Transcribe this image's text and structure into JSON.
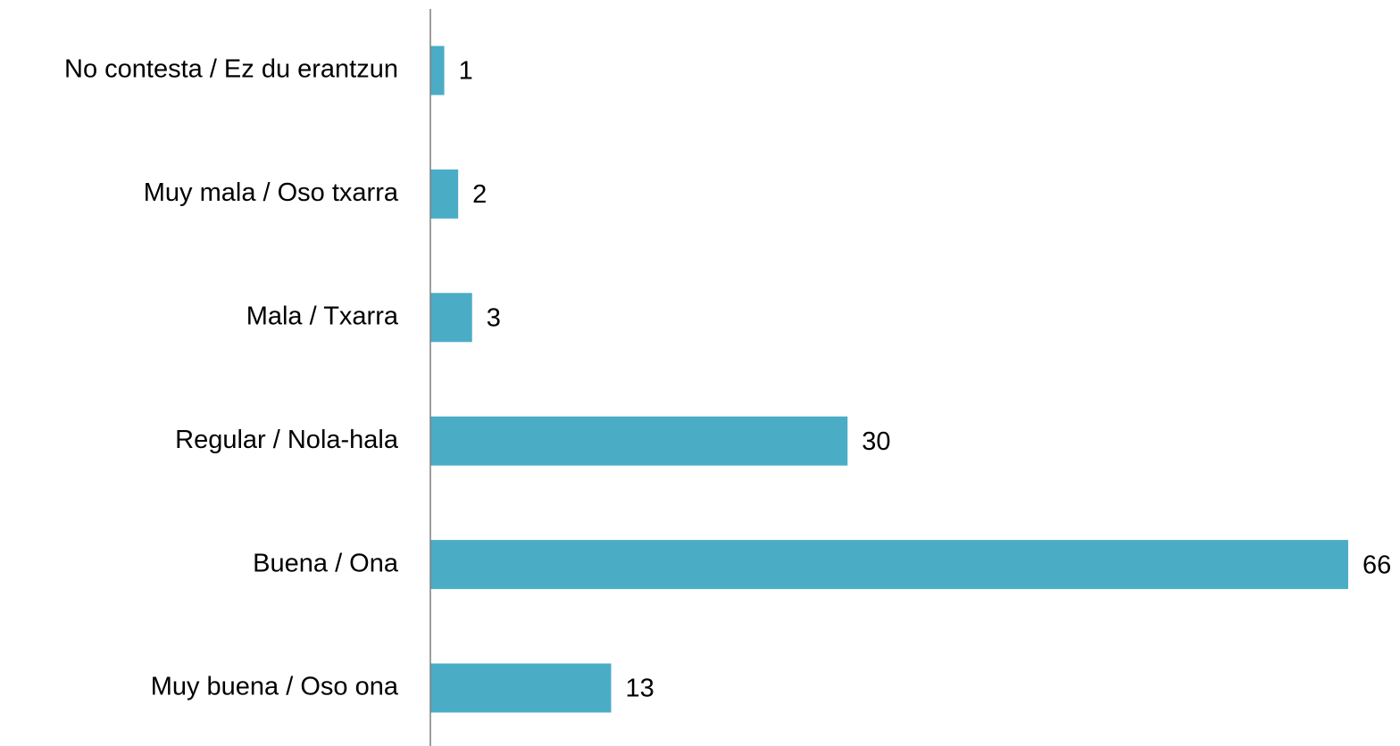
{
  "chart_data": {
    "type": "barh",
    "categories": [
      "No contesta / Ez du erantzun",
      "Muy mala / Oso txarra",
      "Mala / Txarra",
      "Regular / Nola-hala",
      "Buena / Ona",
      "Muy buena / Oso ona"
    ],
    "values": [
      1,
      2,
      3,
      30,
      66,
      13
    ],
    "color": "#4bacc6"
  }
}
